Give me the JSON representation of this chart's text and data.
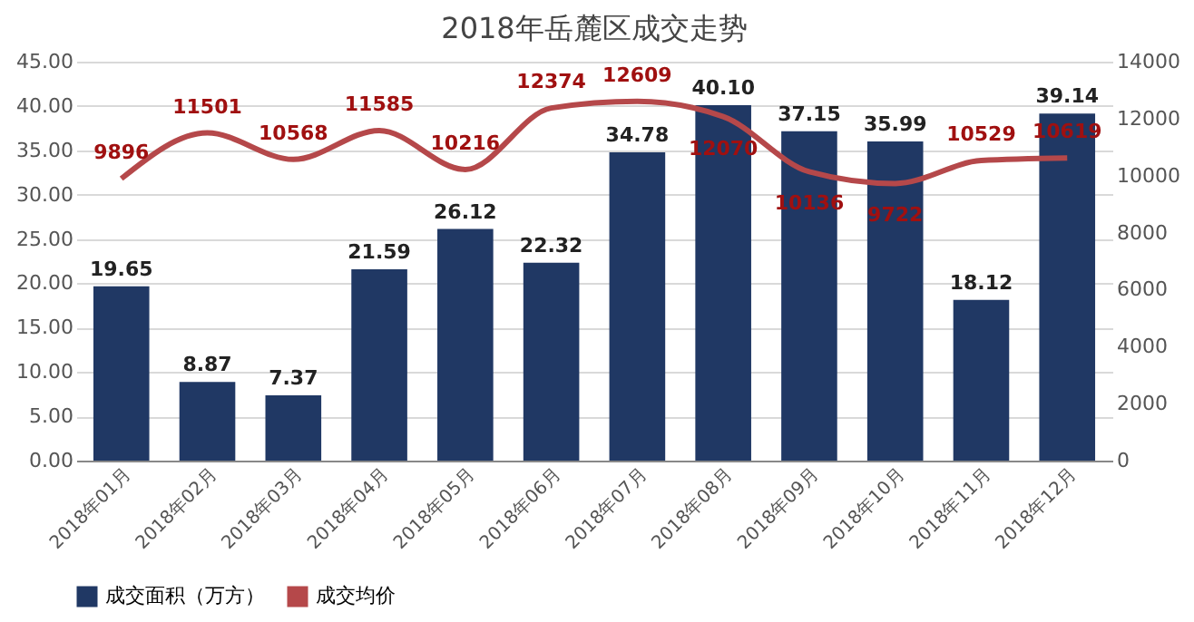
{
  "chart_data": {
    "type": "bar",
    "title": "2018年岳麓区成交走势",
    "categories": [
      "2018年01月",
      "2018年02月",
      "2018年03月",
      "2018年04月",
      "2018年05月",
      "2018年06月",
      "2018年07月",
      "2018年08月",
      "2018年09月",
      "2018年10月",
      "2018年11月",
      "2018年12月"
    ],
    "series": [
      {
        "name": "成交面积（万方）",
        "type": "bar",
        "color": "#203864",
        "values": [
          19.65,
          8.87,
          7.37,
          21.59,
          26.12,
          22.32,
          34.78,
          40.1,
          37.15,
          35.99,
          18.12,
          39.14
        ],
        "value_labels": [
          "19.65",
          "8.87",
          "7.37",
          "21.59",
          "26.12",
          "22.32",
          "34.78",
          "40.10",
          "37.15",
          "35.99",
          "18.12",
          "39.14"
        ]
      },
      {
        "name": "成交均价",
        "type": "line",
        "axis": "y2",
        "color": "#b5484a",
        "values": [
          9896,
          11501,
          10568,
          11585,
          10216,
          12374,
          12609,
          12070,
          10136,
          9722,
          10529,
          10619
        ]
      }
    ],
    "data_labels": true,
    "ylim": [
      0,
      45
    ],
    "yticks": [
      {
        "value": 0,
        "label": "0.00"
      },
      {
        "value": 5,
        "label": "5.00"
      },
      {
        "value": 10,
        "label": "10.00"
      },
      {
        "value": 15,
        "label": "15.00"
      },
      {
        "value": 20,
        "label": "20.00"
      },
      {
        "value": 25,
        "label": "25.00"
      },
      {
        "value": 30,
        "label": "30.00"
      },
      {
        "value": 35,
        "label": "35.00"
      },
      {
        "value": 40,
        "label": "40.00"
      },
      {
        "value": 45,
        "label": "45.00"
      }
    ],
    "y2lim": [
      0,
      14000
    ],
    "y2ticks": [
      0,
      2000,
      4000,
      6000,
      8000,
      10000,
      12000,
      14000
    ],
    "grid": "y",
    "legend": "bottom"
  }
}
